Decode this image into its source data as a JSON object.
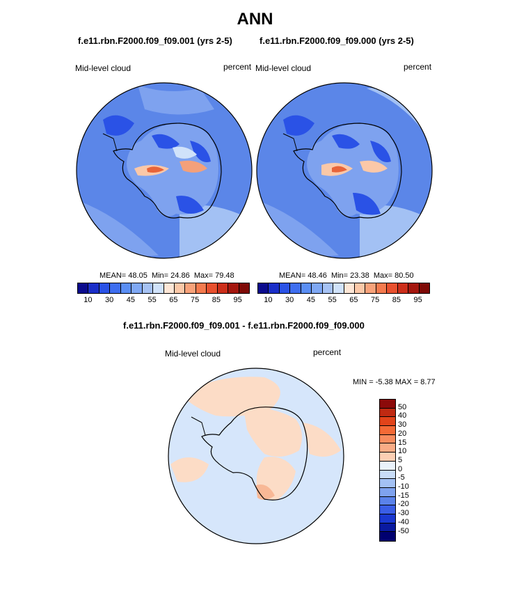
{
  "figure": {
    "title": "ANN",
    "left_panel": {
      "case": "f.e11.rbn.F2000.f09_f09.001 (yrs 2-5)",
      "variable": "Mid-level cloud",
      "units": "percent",
      "mean_label": "MEAN=",
      "mean": "48.05",
      "min_label": "Min=",
      "min": "24.86",
      "max_label": "Max=",
      "max": "79.48"
    },
    "right_panel": {
      "case": "f.e11.rbn.F2000.f09_f09.000 (yrs 2-5)",
      "variable": "Mid-level cloud",
      "units": "percent",
      "mean_label": "MEAN=",
      "mean": "48.46",
      "min_label": "Min=",
      "min": "23.38",
      "max_label": "Max=",
      "max": "80.50"
    },
    "diff_panel": {
      "title": "f.e11.rbn.F2000.f09_f09.001 - f.e11.rbn.F2000.f09_f09.000",
      "variable": "Mid-level cloud",
      "units": "percent",
      "min_label": "MIN =",
      "min": "-5.38",
      "max_label": "MAX =",
      "max": "8.77"
    }
  },
  "colorbar_top": {
    "colors": [
      "#0a0a8c",
      "#1a2ec8",
      "#2a52e6",
      "#3e6ef0",
      "#5a8ef4",
      "#7fa8f4",
      "#a6c2f4",
      "#d0e2fa",
      "#fde6d6",
      "#fbc8a8",
      "#f8a27a",
      "#f47a4e",
      "#e8502e",
      "#cc2e1a",
      "#a4160e",
      "#7e0a06"
    ],
    "tick_labels": [
      "10",
      "30",
      "45",
      "55",
      "65",
      "75",
      "85",
      "95"
    ]
  },
  "colorbar_diff": {
    "colors_top_to_bottom": [
      "#8c0a0a",
      "#c02a12",
      "#e2441a",
      "#f46a36",
      "#f88c5e",
      "#f9ac86",
      "#fccfb4",
      "#eaf2fb",
      "#c9ddf8",
      "#a3c1f4",
      "#7ea2ef",
      "#5a82ea",
      "#3a5ee6",
      "#1a38d0",
      "#0a1aa0",
      "#000070"
    ],
    "tick_labels_top_to_bottom": [
      "50",
      "40",
      "30",
      "20",
      "15",
      "10",
      "5",
      "0",
      "-5",
      "-10",
      "-15",
      "-20",
      "-30",
      "-40",
      "-50"
    ]
  },
  "map_colors": {
    "ocean_base": "#5b86e8",
    "ocean_light": "#7ea2ef",
    "ocean_pale": "#a3c1f4",
    "deep_blue": "#2a52e6",
    "pale": "#d0e2fa",
    "warm_light": "#fbc8a8",
    "warm_mid": "#f4a07a",
    "warm_high": "#e8643a",
    "diff_base": "#d6e6fb",
    "diff_pos": "#fcdcc6",
    "diff_pos2": "#f8b896"
  }
}
